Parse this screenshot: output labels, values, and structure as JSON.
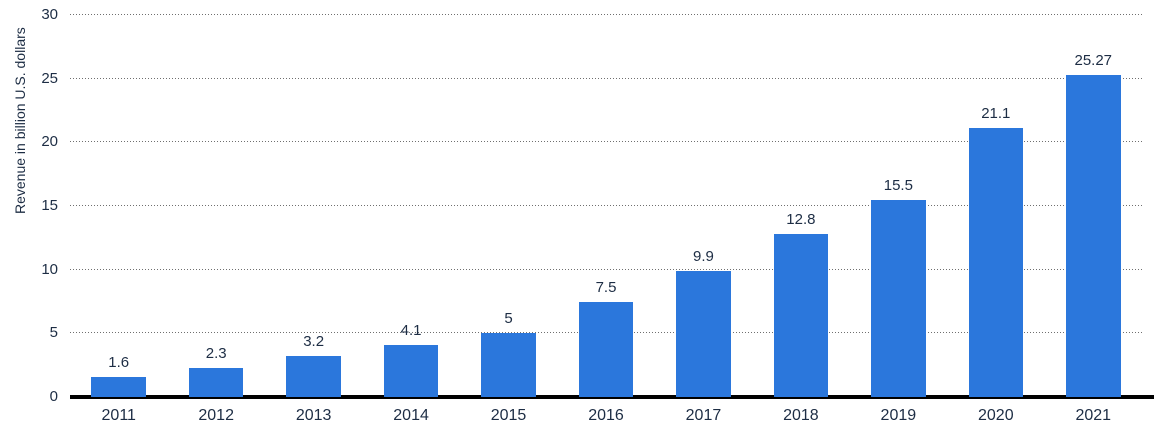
{
  "chart_data": {
    "type": "bar",
    "title": "",
    "categories": [
      "2011",
      "2012",
      "2013",
      "2014",
      "2015",
      "2016",
      "2017",
      "2018",
      "2019",
      "2020",
      "2021"
    ],
    "values": [
      1.6,
      2.3,
      3.2,
      4.1,
      5,
      7.5,
      9.9,
      12.8,
      15.5,
      21.1,
      25.27
    ],
    "value_labels": [
      "1.6",
      "2.3",
      "3.2",
      "4.1",
      "5",
      "7.5",
      "9.9",
      "12.8",
      "15.5",
      "21.1",
      "25.27"
    ],
    "xlabel": "",
    "ylabel": "Revenue in billion U.S. dollars",
    "ylim": [
      0,
      30
    ],
    "yticks": [
      0,
      5,
      10,
      15,
      20,
      25,
      30
    ],
    "grid": "horizontal-dotted",
    "legend": "none",
    "colors": {
      "bar": "#2b77dc",
      "text": "#1d2d44",
      "gridline": "#6f6f6f",
      "axis_line": "#000000",
      "background": "#ffffff"
    }
  }
}
